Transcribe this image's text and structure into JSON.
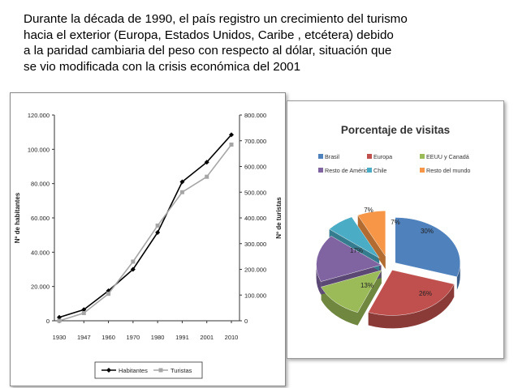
{
  "intro": {
    "line1": "Durante la década  de 1990, el país registro un crecimiento del turismo",
    "line2": "hacia el exterior (Europa, Estados Unidos, Caribe , etcétera) debido",
    "line3": "a la paridad cambiaria del peso con respecto al dólar, situación que",
    "line4": "se vio modificada con la crisis económica del 2001"
  },
  "chart_data": [
    {
      "type": "line",
      "x": [
        "1930",
        "1947",
        "1960",
        "1970",
        "1980",
        "1991",
        "2001",
        "2010"
      ],
      "ylabel_left": "Nº de habitantes",
      "ylabel_right": "Nº de turistas",
      "yticks_left": [
        "120.000",
        "100.000",
        "80.000",
        "60.000",
        "40.000",
        "20.000",
        "0"
      ],
      "yticks_right": [
        "800.000",
        "700.000",
        "600.000",
        "500.000",
        "400.000",
        "300.000",
        "200.000",
        "100.000",
        "0"
      ],
      "ylim_left": [
        0,
        120000
      ],
      "ylim_right": [
        0,
        800000
      ],
      "legend_position": "bottom",
      "grid": false,
      "series": [
        {
          "name": "Habitantes",
          "axis": "left",
          "color": "#000000",
          "marker": "diamond",
          "values": [
            2000,
            6500,
            17500,
            30000,
            51500,
            81000,
            92500,
            108500
          ]
        },
        {
          "name": "Turistas",
          "axis": "right",
          "color": "#a6a6a6",
          "marker": "square",
          "values": [
            0,
            30000,
            105000,
            230000,
            370000,
            500000,
            560000,
            685000
          ]
        }
      ]
    },
    {
      "type": "pie",
      "title": "Porcentaje de visitas",
      "legend_position": "top",
      "slices": [
        {
          "name": "Brasil",
          "value": 30,
          "label": "30%",
          "color": "#4f81bd"
        },
        {
          "name": "Europa",
          "value": 26,
          "label": "26%",
          "color": "#c0504d"
        },
        {
          "name": "EEUU y Canadá",
          "value": 13,
          "label": "13%",
          "color": "#9bbb59"
        },
        {
          "name": "Resto de América",
          "value": 17,
          "label": "17%",
          "color": "#8064a2"
        },
        {
          "name": "Chile",
          "value": 7,
          "label": "7%",
          "color": "#4bacc6"
        },
        {
          "name": "Resto del mundo",
          "value": 7,
          "label": "7%",
          "color": "#f79646"
        }
      ]
    }
  ]
}
